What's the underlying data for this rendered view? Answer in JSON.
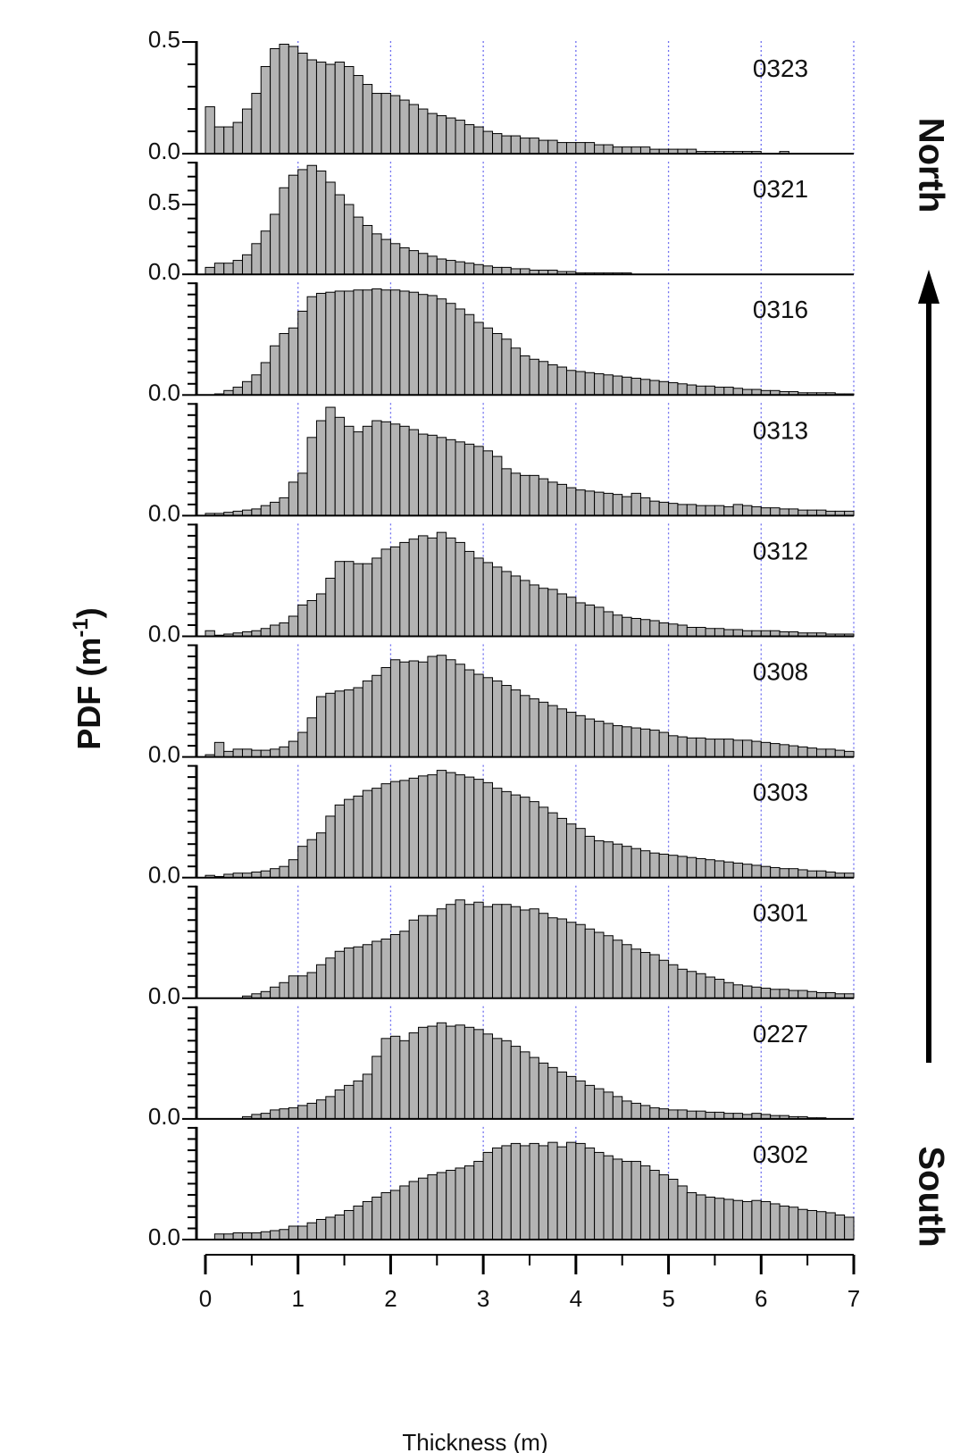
{
  "chart_data": {
    "type": "bar",
    "layout": "stacked-panels",
    "xlabel": "Thickness (m)",
    "ylabel_main": "PDF (m",
    "ylabel_sup": "-1",
    "ylabel_close": ")",
    "xlim": [
      0,
      7
    ],
    "x_ticks": [
      "0",
      "1",
      "2",
      "3",
      "4",
      "5",
      "6",
      "7"
    ],
    "bin_width": 0.1,
    "bin_centers": [
      0.05,
      0.15,
      0.25,
      0.35,
      0.45,
      0.55,
      0.65,
      0.75,
      0.85,
      0.95,
      1.05,
      1.15,
      1.25,
      1.35,
      1.45,
      1.55,
      1.65,
      1.75,
      1.85,
      1.95,
      2.05,
      2.15,
      2.25,
      2.35,
      2.45,
      2.55,
      2.65,
      2.75,
      2.85,
      2.95,
      3.05,
      3.15,
      3.25,
      3.35,
      3.45,
      3.55,
      3.65,
      3.75,
      3.85,
      3.95,
      4.05,
      4.15,
      4.25,
      4.35,
      4.45,
      4.55,
      4.65,
      4.75,
      4.85,
      4.95,
      5.05,
      5.15,
      5.25,
      5.35,
      5.45,
      5.55,
      5.65,
      5.75,
      5.85,
      5.95,
      6.05,
      6.15,
      6.25,
      6.35,
      6.45,
      6.55,
      6.65,
      6.75,
      6.85,
      6.95
    ],
    "direction_top": "North",
    "direction_bottom": "South",
    "grid": "vertical dotted lines at integer thickness",
    "bar_color": "#b3b3b3",
    "grid_color": "#6f6ff0",
    "panels": [
      {
        "name": "0323",
        "ylim": [
          0,
          0.5
        ],
        "yticks": [
          "0.0",
          "0.5"
        ],
        "values": [
          0.21,
          0.12,
          0.12,
          0.14,
          0.2,
          0.27,
          0.39,
          0.47,
          0.49,
          0.48,
          0.45,
          0.42,
          0.41,
          0.4,
          0.41,
          0.39,
          0.35,
          0.31,
          0.27,
          0.27,
          0.26,
          0.24,
          0.22,
          0.2,
          0.18,
          0.17,
          0.16,
          0.15,
          0.13,
          0.12,
          0.1,
          0.09,
          0.08,
          0.08,
          0.07,
          0.07,
          0.06,
          0.06,
          0.05,
          0.05,
          0.05,
          0.05,
          0.04,
          0.04,
          0.03,
          0.03,
          0.03,
          0.03,
          0.02,
          0.02,
          0.02,
          0.02,
          0.02,
          0.01,
          0.01,
          0.01,
          0.01,
          0.01,
          0.01,
          0.01,
          0.0,
          0.0,
          0.01,
          0.0,
          0.0,
          0.0,
          0.0,
          0.0,
          0.0,
          0.0
        ]
      },
      {
        "name": "0321",
        "ylim": [
          0,
          0.8
        ],
        "yticks": [
          "0.0",
          "0.5"
        ],
        "values": [
          0.05,
          0.08,
          0.08,
          0.1,
          0.14,
          0.22,
          0.31,
          0.43,
          0.62,
          0.71,
          0.75,
          0.78,
          0.74,
          0.66,
          0.57,
          0.5,
          0.41,
          0.35,
          0.29,
          0.25,
          0.22,
          0.19,
          0.17,
          0.15,
          0.13,
          0.11,
          0.1,
          0.09,
          0.08,
          0.07,
          0.06,
          0.05,
          0.05,
          0.04,
          0.04,
          0.03,
          0.03,
          0.03,
          0.02,
          0.02,
          0.01,
          0.01,
          0.01,
          0.01,
          0.01,
          0.01,
          0.0,
          0.0,
          0.0,
          0.0,
          0.0,
          0.0,
          0.0,
          0.0,
          0.0,
          0.0,
          0.0,
          0.0,
          0.0,
          0.0,
          0.0,
          0.0,
          0.0,
          0.0,
          0.0,
          0.0,
          0.0,
          0.0,
          0.0,
          0.0
        ]
      },
      {
        "name": "0316",
        "ylim": [
          0,
          1
        ],
        "yticks": [
          "0.0"
        ],
        "values": [
          0.0,
          0.01,
          0.04,
          0.07,
          0.12,
          0.18,
          0.29,
          0.44,
          0.55,
          0.6,
          0.75,
          0.88,
          0.91,
          0.92,
          0.93,
          0.93,
          0.94,
          0.94,
          0.95,
          0.94,
          0.94,
          0.93,
          0.92,
          0.9,
          0.89,
          0.86,
          0.82,
          0.77,
          0.72,
          0.65,
          0.6,
          0.55,
          0.5,
          0.42,
          0.35,
          0.32,
          0.3,
          0.27,
          0.25,
          0.22,
          0.21,
          0.2,
          0.19,
          0.18,
          0.17,
          0.16,
          0.15,
          0.14,
          0.13,
          0.12,
          0.11,
          0.1,
          0.09,
          0.08,
          0.08,
          0.07,
          0.07,
          0.06,
          0.05,
          0.05,
          0.04,
          0.04,
          0.03,
          0.03,
          0.02,
          0.02,
          0.02,
          0.02,
          0.01,
          0.01
        ]
      },
      {
        "name": "0313",
        "ylim": [
          0,
          1
        ],
        "yticks": [
          "0.0"
        ],
        "values": [
          0.02,
          0.02,
          0.03,
          0.04,
          0.05,
          0.06,
          0.09,
          0.12,
          0.16,
          0.3,
          0.38,
          0.7,
          0.85,
          0.97,
          0.88,
          0.8,
          0.75,
          0.8,
          0.85,
          0.84,
          0.82,
          0.8,
          0.77,
          0.73,
          0.72,
          0.7,
          0.68,
          0.66,
          0.64,
          0.62,
          0.58,
          0.53,
          0.42,
          0.38,
          0.36,
          0.36,
          0.33,
          0.3,
          0.28,
          0.25,
          0.23,
          0.22,
          0.21,
          0.2,
          0.19,
          0.17,
          0.2,
          0.16,
          0.13,
          0.12,
          0.11,
          0.1,
          0.1,
          0.09,
          0.09,
          0.09,
          0.08,
          0.1,
          0.09,
          0.08,
          0.07,
          0.07,
          0.06,
          0.06,
          0.05,
          0.05,
          0.05,
          0.04,
          0.04,
          0.04
        ]
      },
      {
        "name": "0312",
        "ylim": [
          0,
          1
        ],
        "yticks": [
          "0.0"
        ],
        "values": [
          0.05,
          0.01,
          0.02,
          0.03,
          0.04,
          0.05,
          0.07,
          0.1,
          0.12,
          0.18,
          0.28,
          0.32,
          0.38,
          0.52,
          0.67,
          0.67,
          0.65,
          0.65,
          0.7,
          0.78,
          0.8,
          0.84,
          0.87,
          0.9,
          0.88,
          0.93,
          0.88,
          0.84,
          0.76,
          0.7,
          0.66,
          0.62,
          0.58,
          0.54,
          0.5,
          0.46,
          0.43,
          0.42,
          0.38,
          0.35,
          0.3,
          0.28,
          0.26,
          0.22,
          0.19,
          0.17,
          0.16,
          0.15,
          0.14,
          0.12,
          0.11,
          0.1,
          0.08,
          0.08,
          0.07,
          0.07,
          0.06,
          0.06,
          0.05,
          0.05,
          0.05,
          0.05,
          0.04,
          0.04,
          0.03,
          0.03,
          0.03,
          0.02,
          0.02,
          0.02
        ]
      },
      {
        "name": "0308",
        "ylim": [
          0,
          1
        ],
        "yticks": [
          "0.0"
        ],
        "values": [
          0.02,
          0.13,
          0.05,
          0.07,
          0.07,
          0.06,
          0.06,
          0.07,
          0.09,
          0.14,
          0.22,
          0.35,
          0.54,
          0.57,
          0.59,
          0.6,
          0.62,
          0.68,
          0.73,
          0.8,
          0.87,
          0.85,
          0.86,
          0.85,
          0.9,
          0.91,
          0.87,
          0.83,
          0.78,
          0.74,
          0.71,
          0.68,
          0.64,
          0.6,
          0.55,
          0.52,
          0.49,
          0.46,
          0.43,
          0.4,
          0.37,
          0.34,
          0.32,
          0.3,
          0.28,
          0.27,
          0.26,
          0.25,
          0.24,
          0.22,
          0.19,
          0.18,
          0.17,
          0.17,
          0.16,
          0.16,
          0.16,
          0.15,
          0.15,
          0.14,
          0.13,
          0.12,
          0.11,
          0.1,
          0.09,
          0.08,
          0.07,
          0.07,
          0.06,
          0.05
        ]
      },
      {
        "name": "0303",
        "ylim": [
          0,
          1
        ],
        "yticks": [
          "0.0"
        ],
        "values": [
          0.02,
          0.01,
          0.03,
          0.04,
          0.04,
          0.05,
          0.06,
          0.08,
          0.1,
          0.16,
          0.28,
          0.34,
          0.4,
          0.55,
          0.65,
          0.7,
          0.73,
          0.78,
          0.8,
          0.84,
          0.86,
          0.87,
          0.89,
          0.91,
          0.92,
          0.96,
          0.94,
          0.92,
          0.9,
          0.88,
          0.85,
          0.8,
          0.77,
          0.74,
          0.72,
          0.68,
          0.63,
          0.58,
          0.53,
          0.48,
          0.44,
          0.37,
          0.33,
          0.32,
          0.3,
          0.28,
          0.26,
          0.24,
          0.22,
          0.21,
          0.2,
          0.19,
          0.18,
          0.17,
          0.16,
          0.15,
          0.14,
          0.13,
          0.12,
          0.11,
          0.1,
          0.09,
          0.08,
          0.08,
          0.07,
          0.06,
          0.06,
          0.05,
          0.04,
          0.04
        ]
      },
      {
        "name": "0301",
        "ylim": [
          0,
          1
        ],
        "yticks": [
          "0.0"
        ],
        "values": [
          0.0,
          0.0,
          0.0,
          0.0,
          0.02,
          0.04,
          0.06,
          0.1,
          0.14,
          0.2,
          0.2,
          0.23,
          0.3,
          0.36,
          0.42,
          0.45,
          0.46,
          0.48,
          0.51,
          0.53,
          0.57,
          0.6,
          0.7,
          0.74,
          0.74,
          0.8,
          0.84,
          0.88,
          0.84,
          0.86,
          0.82,
          0.84,
          0.84,
          0.82,
          0.79,
          0.8,
          0.76,
          0.72,
          0.71,
          0.68,
          0.66,
          0.62,
          0.59,
          0.56,
          0.52,
          0.48,
          0.44,
          0.41,
          0.39,
          0.34,
          0.3,
          0.26,
          0.24,
          0.22,
          0.19,
          0.17,
          0.14,
          0.12,
          0.11,
          0.1,
          0.09,
          0.08,
          0.08,
          0.07,
          0.07,
          0.06,
          0.05,
          0.05,
          0.04,
          0.04
        ]
      },
      {
        "name": "0227",
        "ylim": [
          0,
          1
        ],
        "yticks": [
          "0.0"
        ],
        "values": [
          0.0,
          0.0,
          0.0,
          0.0,
          0.02,
          0.04,
          0.05,
          0.08,
          0.09,
          0.1,
          0.12,
          0.14,
          0.17,
          0.2,
          0.26,
          0.3,
          0.34,
          0.4,
          0.56,
          0.72,
          0.74,
          0.7,
          0.77,
          0.82,
          0.83,
          0.86,
          0.83,
          0.84,
          0.82,
          0.8,
          0.76,
          0.72,
          0.7,
          0.65,
          0.6,
          0.55,
          0.5,
          0.46,
          0.42,
          0.38,
          0.34,
          0.3,
          0.27,
          0.24,
          0.2,
          0.16,
          0.14,
          0.12,
          0.1,
          0.09,
          0.08,
          0.08,
          0.07,
          0.07,
          0.06,
          0.06,
          0.05,
          0.05,
          0.04,
          0.05,
          0.04,
          0.03,
          0.03,
          0.02,
          0.02,
          0.01,
          0.01,
          0.0,
          0.0,
          0.0
        ]
      },
      {
        "name": "0302",
        "ylim": [
          0,
          1
        ],
        "yticks": [
          "0.0"
        ],
        "values": [
          0.0,
          0.05,
          0.05,
          0.06,
          0.06,
          0.06,
          0.07,
          0.08,
          0.09,
          0.12,
          0.12,
          0.15,
          0.18,
          0.2,
          0.22,
          0.26,
          0.3,
          0.34,
          0.38,
          0.42,
          0.44,
          0.48,
          0.52,
          0.55,
          0.58,
          0.6,
          0.62,
          0.64,
          0.66,
          0.7,
          0.78,
          0.82,
          0.84,
          0.86,
          0.84,
          0.86,
          0.84,
          0.87,
          0.83,
          0.87,
          0.86,
          0.82,
          0.78,
          0.75,
          0.72,
          0.7,
          0.7,
          0.66,
          0.62,
          0.58,
          0.54,
          0.48,
          0.42,
          0.4,
          0.38,
          0.37,
          0.36,
          0.35,
          0.34,
          0.35,
          0.34,
          0.32,
          0.3,
          0.29,
          0.27,
          0.26,
          0.25,
          0.24,
          0.22,
          0.2
        ]
      }
    ]
  }
}
